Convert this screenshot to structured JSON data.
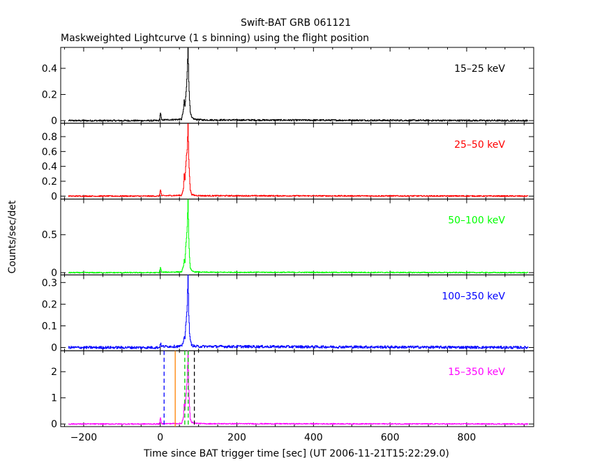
{
  "title": "Swift-BAT GRB 061121",
  "subtitle": "Maskweighted Lightcurve (1 s binning) using the flight position",
  "xlabel": "Time since BAT trigger time [sec] (UT 2006-11-21T15:22:29.0)",
  "ylabel": "Counts/sec/det",
  "chart_data": {
    "type": "line",
    "x_range": [
      -260,
      975
    ],
    "x_ticks": [
      -200,
      0,
      200,
      400,
      600,
      800
    ],
    "x_tick_labels": [
      "−200",
      "0",
      "200",
      "400",
      "600",
      "800"
    ],
    "data_span": [
      -240,
      960
    ],
    "panels": [
      {
        "band": "15–25 keV",
        "color": "#000000",
        "ylim": [
          -0.02,
          0.56
        ],
        "yticks": [
          0,
          0.2,
          0.4
        ],
        "ytick_labels": [
          "0",
          "0.2",
          "0.4"
        ],
        "noise": 0.006,
        "points": [
          [
            -240,
            0
          ],
          [
            -3,
            0
          ],
          [
            0,
            0.06
          ],
          [
            3,
            0.005
          ],
          [
            55,
            0.01
          ],
          [
            60,
            0.08
          ],
          [
            62,
            0.16
          ],
          [
            64,
            0.11
          ],
          [
            66,
            0.18
          ],
          [
            68,
            0.26
          ],
          [
            70,
            0.38
          ],
          [
            72,
            0.57
          ],
          [
            74,
            0.3
          ],
          [
            76,
            0.16
          ],
          [
            78,
            0.06
          ],
          [
            82,
            0.02
          ],
          [
            90,
            0.01
          ],
          [
            110,
            0.005
          ],
          [
            960,
            0
          ]
        ]
      },
      {
        "band": "25–50 keV",
        "color": "#ff0000",
        "ylim": [
          -0.04,
          0.98
        ],
        "yticks": [
          0,
          0.2,
          0.4,
          0.6,
          0.8
        ],
        "ytick_labels": [
          "0",
          "0.2",
          "0.4",
          "0.6",
          "0.8"
        ],
        "noise": 0.008,
        "points": [
          [
            -240,
            0
          ],
          [
            -3,
            0
          ],
          [
            0,
            0.09
          ],
          [
            3,
            0.005
          ],
          [
            55,
            0.01
          ],
          [
            60,
            0.1
          ],
          [
            62,
            0.3
          ],
          [
            64,
            0.22
          ],
          [
            66,
            0.4
          ],
          [
            68,
            0.55
          ],
          [
            70,
            0.62
          ],
          [
            72,
            0.98
          ],
          [
            74,
            0.5
          ],
          [
            76,
            0.26
          ],
          [
            78,
            0.08
          ],
          [
            82,
            0.02
          ],
          [
            90,
            0.01
          ],
          [
            110,
            0.005
          ],
          [
            960,
            0
          ]
        ]
      },
      {
        "band": "50–100 keV",
        "color": "#00ff00",
        "ylim": [
          -0.03,
          0.97
        ],
        "yticks": [
          0,
          0.5
        ],
        "ytick_labels": [
          "0",
          "0.5"
        ],
        "noise": 0.007,
        "points": [
          [
            -240,
            0
          ],
          [
            -3,
            0
          ],
          [
            0,
            0.07
          ],
          [
            3,
            0.005
          ],
          [
            55,
            0.01
          ],
          [
            60,
            0.08
          ],
          [
            62,
            0.18
          ],
          [
            64,
            0.13
          ],
          [
            66,
            0.35
          ],
          [
            68,
            0.45
          ],
          [
            70,
            0.6
          ],
          [
            72,
            0.97
          ],
          [
            74,
            0.45
          ],
          [
            76,
            0.2
          ],
          [
            78,
            0.06
          ],
          [
            82,
            0.02
          ],
          [
            90,
            0.01
          ],
          [
            110,
            0.005
          ],
          [
            960,
            0
          ]
        ]
      },
      {
        "band": "100–350 keV",
        "color": "#0000ff",
        "ylim": [
          -0.015,
          0.335
        ],
        "yticks": [
          0,
          0.1,
          0.2,
          0.3
        ],
        "ytick_labels": [
          "0",
          "0.1",
          "0.2",
          "0.3"
        ],
        "noise": 0.006,
        "points": [
          [
            -240,
            0
          ],
          [
            -3,
            0
          ],
          [
            0,
            0.02
          ],
          [
            3,
            0.005
          ],
          [
            55,
            0.005
          ],
          [
            60,
            0.03
          ],
          [
            62,
            0.05
          ],
          [
            64,
            0.04
          ],
          [
            66,
            0.1
          ],
          [
            68,
            0.14
          ],
          [
            70,
            0.2
          ],
          [
            72,
            0.34
          ],
          [
            74,
            0.15
          ],
          [
            76,
            0.07
          ],
          [
            78,
            0.03
          ],
          [
            82,
            0.01
          ],
          [
            90,
            0.005
          ],
          [
            960,
            0
          ]
        ]
      },
      {
        "band": "15–350 keV",
        "color": "#ff00ff",
        "ylim": [
          -0.1,
          2.8
        ],
        "yticks": [
          0,
          1,
          2
        ],
        "ytick_labels": [
          "0",
          "1",
          "2"
        ],
        "noise": 0.02,
        "points": [
          [
            -240,
            0
          ],
          [
            -3,
            0
          ],
          [
            0,
            0.22
          ],
          [
            3,
            0.01
          ],
          [
            55,
            0.02
          ],
          [
            60,
            0.25
          ],
          [
            62,
            0.75
          ],
          [
            64,
            0.55
          ],
          [
            66,
            0.95
          ],
          [
            68,
            1.35
          ],
          [
            70,
            1.7
          ],
          [
            72,
            2.8
          ],
          [
            74,
            1.3
          ],
          [
            76,
            0.65
          ],
          [
            78,
            0.2
          ],
          [
            82,
            0.06
          ],
          [
            90,
            0.03
          ],
          [
            110,
            0.01
          ],
          [
            960,
            0
          ]
        ]
      }
    ],
    "markers": [
      {
        "x": 10,
        "color": "#0000ff",
        "style": "dashed"
      },
      {
        "x": 39,
        "color": "#ff8000",
        "style": "solid"
      },
      {
        "x": 64,
        "color": "#00cc00",
        "style": "dashed"
      },
      {
        "x": 73,
        "color": "#00cc00",
        "style": "dashed"
      },
      {
        "x": 89,
        "color": "#000000",
        "style": "dashed"
      }
    ]
  }
}
